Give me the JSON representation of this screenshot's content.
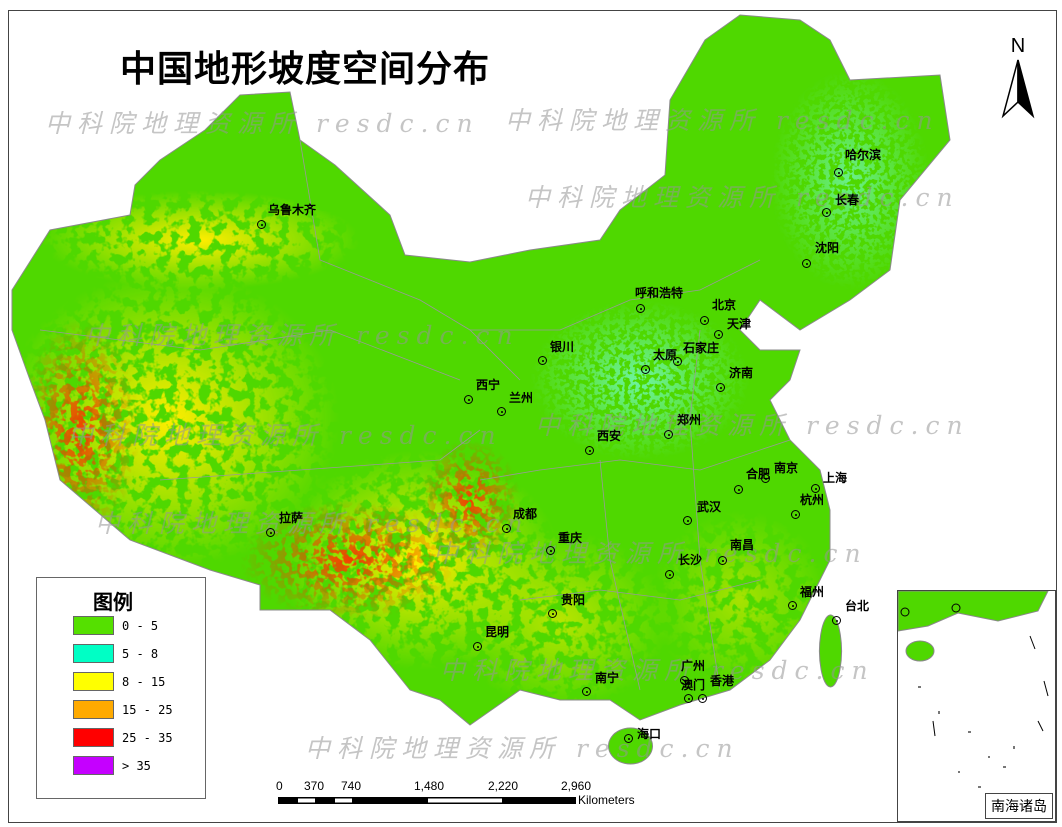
{
  "title": "中国地形坡度空间分布",
  "watermark": "中科院地理资源所 resdc.cn",
  "north_label": "N",
  "legend": {
    "title": "图例",
    "items": [
      {
        "label": "0 - 5",
        "color": "#55e000"
      },
      {
        "label": "5 - 8",
        "color": "#00ffc5"
      },
      {
        "label": "8 - 15",
        "color": "#ffff00"
      },
      {
        "label": "15 - 25",
        "color": "#ffaa00"
      },
      {
        "label": "25 - 35",
        "color": "#ff0000"
      },
      {
        "label": "> 35",
        "color": "#c500ff"
      }
    ]
  },
  "scale_bar": {
    "ticks": [
      "0",
      "370",
      "740",
      "1,480",
      "2,220",
      "2,960"
    ],
    "unit": "Kilometers"
  },
  "cities": [
    {
      "name": "乌鲁木齐"
    },
    {
      "name": "哈尔滨"
    },
    {
      "name": "长春"
    },
    {
      "name": "沈阳"
    },
    {
      "name": "呼和浩特"
    },
    {
      "name": "北京"
    },
    {
      "name": "天津"
    },
    {
      "name": "石家庄"
    },
    {
      "name": "太原"
    },
    {
      "name": "银川"
    },
    {
      "name": "济南"
    },
    {
      "name": "西宁"
    },
    {
      "name": "兰州"
    },
    {
      "name": "郑州"
    },
    {
      "name": "西安"
    },
    {
      "name": "合肥"
    },
    {
      "name": "南京"
    },
    {
      "name": "上海"
    },
    {
      "name": "杭州"
    },
    {
      "name": "武汉"
    },
    {
      "name": "成都"
    },
    {
      "name": "重庆"
    },
    {
      "name": "拉萨"
    },
    {
      "name": "长沙"
    },
    {
      "name": "南昌"
    },
    {
      "name": "福州"
    },
    {
      "name": "台北"
    },
    {
      "name": "贵阳"
    },
    {
      "name": "昆明"
    },
    {
      "name": "南宁"
    },
    {
      "name": "广州"
    },
    {
      "name": "澳门"
    },
    {
      "name": "香港"
    },
    {
      "name": "海口"
    }
  ],
  "inset_label": "南海诸岛"
}
